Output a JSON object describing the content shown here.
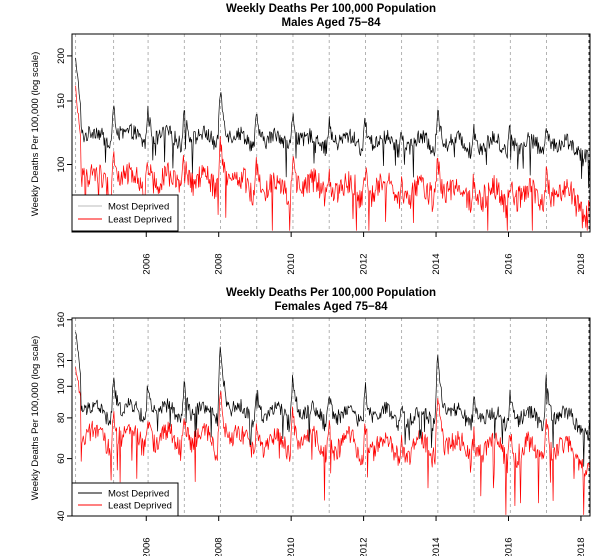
{
  "chart_data": [
    {
      "type": "line",
      "title": "Weekly Deaths Per 100,000 Population",
      "subtitle": "Males Aged 75−84",
      "ylabel": "Weekly Deaths Per 100,000 (log scale)",
      "xlabel": "",
      "yscale": "log",
      "ylim": [
        65,
        230
      ],
      "xlim": [
        2004.45,
        2018.75
      ],
      "yticks": [
        100,
        150,
        200
      ],
      "xticks": [
        2006,
        2008,
        2010,
        2012,
        2014,
        2016,
        2018
      ],
      "legend_position": "bottom-left",
      "winter_peaks": [
        2004.55,
        2005.6,
        2006.55,
        2007.55,
        2008.55,
        2009.55,
        2010.55,
        2011.55,
        2012.55,
        2013.55,
        2014.55,
        2015.55,
        2016.55,
        2017.55
      ],
      "series": [
        {
          "name": "Most Deprived",
          "color": "#000000",
          "base": 118,
          "amp": [
            40,
            36,
            34,
            36,
            60,
            30,
            34,
            26,
            28,
            18,
            40,
            22,
            26,
            30
          ],
          "trend": -0.55,
          "noise": 6,
          "start": 196
        },
        {
          "name": "Least Deprived",
          "color": "#ff0000",
          "base": 90,
          "amp": [
            32,
            28,
            24,
            28,
            42,
            22,
            24,
            18,
            20,
            12,
            32,
            18,
            18,
            22
          ],
          "trend": -0.8,
          "noise": 7,
          "start": 162
        }
      ]
    },
    {
      "type": "line",
      "title": "Weekly Deaths Per 100,000 Population",
      "subtitle": "Females Aged 75−84",
      "ylabel": "Weekly Deaths Per 100,000 (log scale)",
      "xlabel": "",
      "yscale": "log",
      "ylim": [
        40,
        162
      ],
      "xlim": [
        2004.45,
        2018.75
      ],
      "yticks": [
        40,
        60,
        80,
        100,
        120,
        160
      ],
      "xticks": [
        2006,
        2008,
        2010,
        2012,
        2014,
        2016,
        2018
      ],
      "legend_position": "bottom-left",
      "winter_peaks": [
        2004.55,
        2005.6,
        2006.55,
        2007.55,
        2008.55,
        2009.55,
        2010.55,
        2011.55,
        2012.55,
        2013.55,
        2014.55,
        2015.55,
        2016.55,
        2017.55
      ],
      "series": [
        {
          "name": "Most Deprived",
          "color": "#000000",
          "base": 82,
          "amp": [
            38,
            34,
            30,
            32,
            70,
            28,
            40,
            26,
            30,
            14,
            62,
            22,
            26,
            40
          ],
          "trend": -0.35,
          "noise": 4.5,
          "start": 148
        },
        {
          "name": "Least Deprived",
          "color": "#ff0000",
          "base": 68,
          "amp": [
            28,
            26,
            22,
            26,
            46,
            22,
            28,
            18,
            20,
            10,
            42,
            16,
            18,
            26
          ],
          "trend": -0.5,
          "noise": 5,
          "start": 115
        }
      ]
    }
  ]
}
